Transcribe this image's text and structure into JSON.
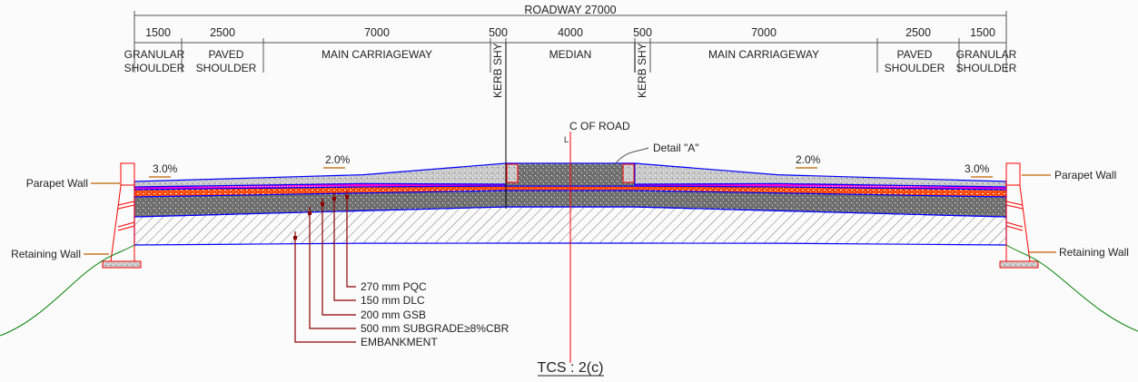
{
  "drawing": {
    "overall_dimension": "ROADWAY 27000",
    "segments": [
      {
        "dim": "1500",
        "label1": "GRANULAR",
        "label2": "SHOULDER"
      },
      {
        "dim": "2500",
        "label1": "PAVED",
        "label2": "SHOULDER"
      },
      {
        "dim": "7000",
        "label1": "MAIN CARRIAGEWAY",
        "label2": ""
      },
      {
        "dim": "500",
        "label1": "KERB SHY",
        "label2": ""
      },
      {
        "dim": "4000",
        "label1": "MEDIAN",
        "label2": ""
      },
      {
        "dim": "500",
        "label1": "KERB SHY",
        "label2": ""
      },
      {
        "dim": "7000",
        "label1": "MAIN CARRIAGEWAY",
        "label2": ""
      },
      {
        "dim": "2500",
        "label1": "PAVED",
        "label2": "SHOULDER"
      },
      {
        "dim": "1500",
        "label1": "GRANULAR",
        "label2": "SHOULDER"
      }
    ],
    "centerline_label": "C OF ROAD",
    "centerline_symbol": "L",
    "detail_label": "Detail \"A\"",
    "slopes": {
      "left_outer": "3.0%",
      "left_inner": "2.0%",
      "right_inner": "2.0%",
      "right_outer": "3.0%"
    },
    "walls": {
      "parapet_left": "Parapet Wall",
      "retaining_left": "Retaining Wall",
      "parapet_right": "Parapet Wall",
      "retaining_right": "Retaining Wall"
    },
    "layers": [
      {
        "label": "270 mm PQC"
      },
      {
        "label": "150 mm DLC"
      },
      {
        "label": "200 mm GSB"
      },
      {
        "label": "500 mm SUBGRADE≥8%CBR"
      },
      {
        "label": "EMBANKMENT"
      }
    ],
    "title": "TCS : 2(c)",
    "colors": {
      "boundary": "#0000ff",
      "wall": "#ff0000",
      "leader": "#8b0000",
      "ground": "#008000",
      "note_arrow": "#c06000",
      "dlc": "#ff4500",
      "pqc_band": "#ff00cc",
      "gsb": "#6e6e6e"
    }
  }
}
